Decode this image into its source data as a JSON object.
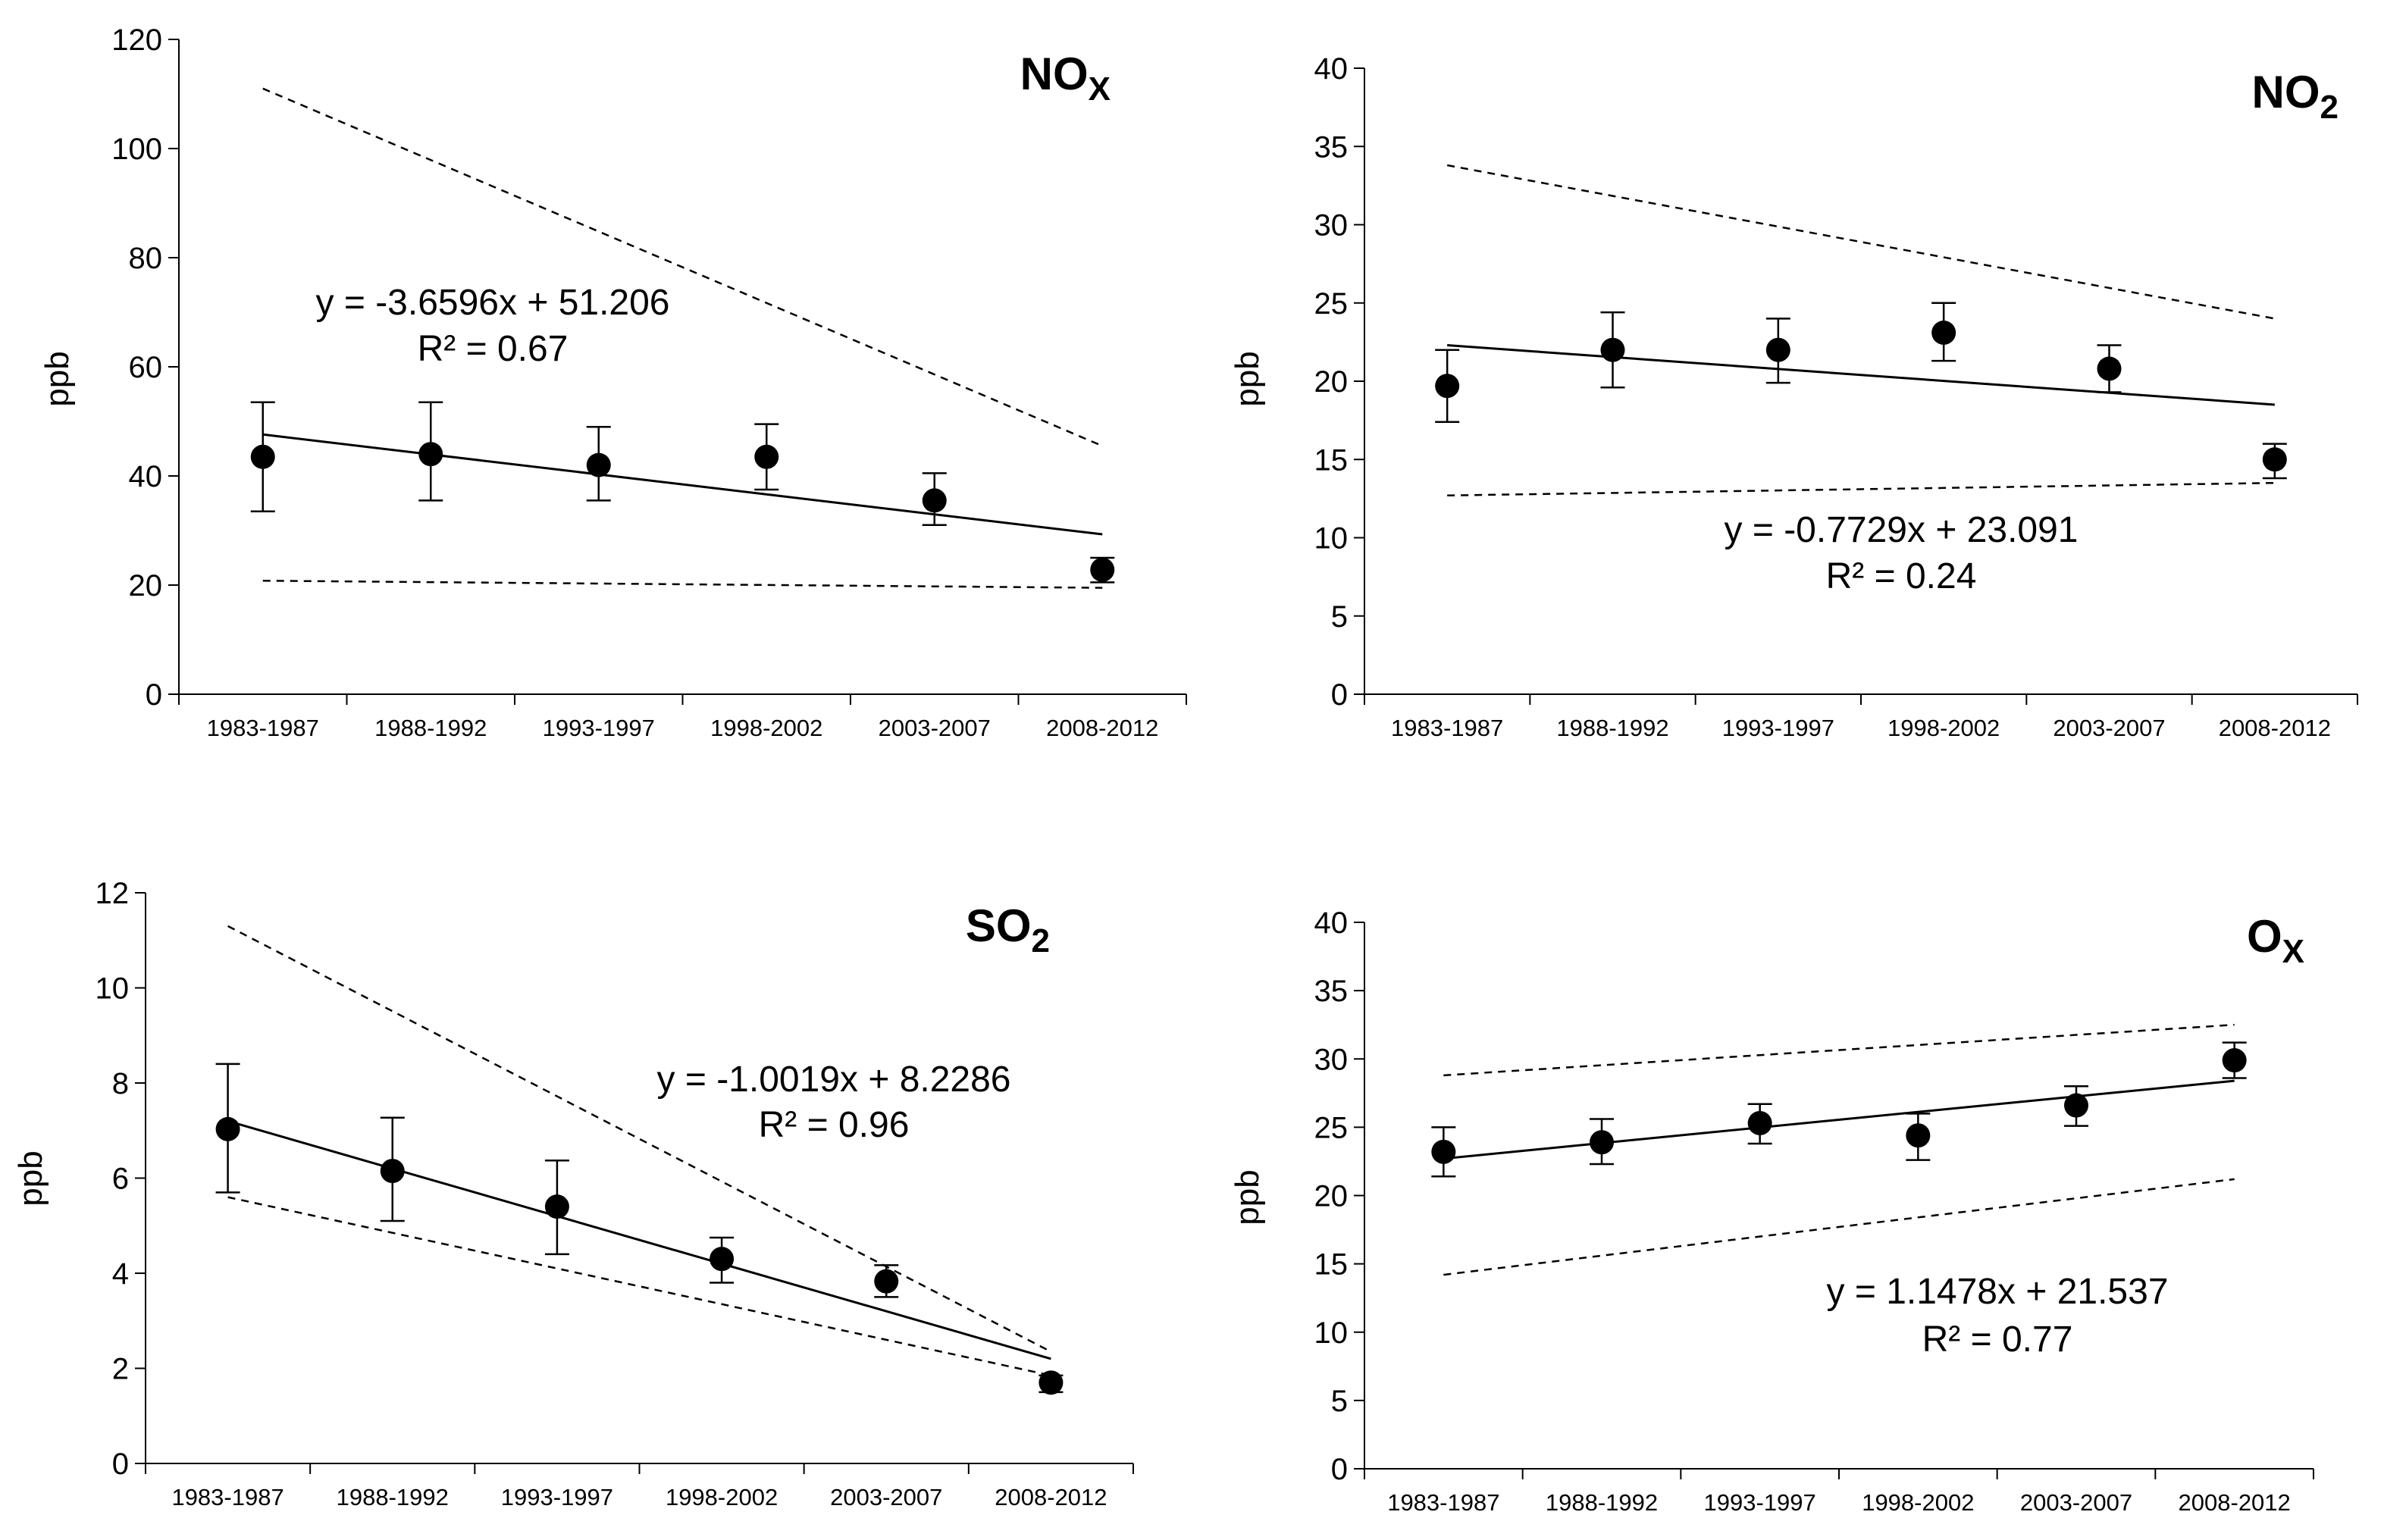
{
  "chart_data": [
    {
      "type": "scatter",
      "panel": "top-left",
      "title": "NO",
      "title_sub": "X",
      "ylabel": "ppb",
      "ylim": [
        0,
        120
      ],
      "yticks": [
        0,
        20,
        40,
        60,
        80,
        100,
        120
      ],
      "categories": [
        "1983-1987",
        "1988-1992",
        "1993-1997",
        "1998-2002",
        "2003-2007",
        "2008-2012"
      ],
      "values": [
        43.5,
        44.0,
        42.0,
        43.5,
        35.5,
        22.8
      ],
      "error_upper": [
        53.5,
        53.5,
        49.0,
        49.5,
        40.5,
        25.0
      ],
      "error_lower": [
        33.5,
        35.5,
        35.5,
        37.5,
        31.0,
        20.5
      ],
      "trendline": {
        "start": 47.6,
        "end": 29.3
      },
      "dashed_upper": {
        "start": 111,
        "end": 45.5
      },
      "dashed_lower": {
        "start": 20.8,
        "end": 19.5
      },
      "equation": "y = -3.6596x + 51.206",
      "r2": "R² = 0.67"
    },
    {
      "type": "scatter",
      "panel": "top-right",
      "title": "NO",
      "title_sub": "2",
      "ylabel": "ppb",
      "ylim": [
        0,
        40
      ],
      "yticks": [
        0,
        5,
        10,
        15,
        20,
        25,
        30,
        35,
        40
      ],
      "categories": [
        "1983-1987",
        "1988-1992",
        "1993-1997",
        "1998-2002",
        "2003-2007",
        "2008-2012"
      ],
      "values": [
        19.7,
        22.0,
        22.0,
        23.1,
        20.8,
        15.0
      ],
      "error_upper": [
        22.0,
        24.4,
        24.0,
        25.0,
        22.3,
        16.0
      ],
      "error_lower": [
        17.4,
        19.6,
        19.9,
        21.3,
        19.3,
        13.8
      ],
      "trendline": {
        "start": 22.3,
        "end": 18.5
      },
      "dashed_upper": {
        "start": 33.8,
        "end": 24.0
      },
      "dashed_lower": {
        "start": 12.7,
        "end": 13.5
      },
      "equation": "y = -0.7729x + 23.091",
      "r2": "R² = 0.24"
    },
    {
      "type": "scatter",
      "panel": "bottom-left",
      "title": "SO",
      "title_sub": "2",
      "ylabel": "ppb",
      "ylim": [
        0,
        12
      ],
      "yticks": [
        0,
        2,
        4,
        6,
        8,
        10,
        12
      ],
      "categories": [
        "1983-1987",
        "1988-1992",
        "1993-1997",
        "1998-2002",
        "2003-2007",
        "2008-2012"
      ],
      "values": [
        7.03,
        6.15,
        5.4,
        4.3,
        3.83,
        1.7
      ],
      "error_upper": [
        8.4,
        7.27,
        6.37,
        4.75,
        4.17,
        1.85
      ],
      "error_lower": [
        5.7,
        5.1,
        4.4,
        3.8,
        3.5,
        1.5
      ],
      "trendline": {
        "start": 7.2,
        "end": 2.2
      },
      "dashed_upper": {
        "start": 11.3,
        "end": 2.35
      },
      "dashed_lower": {
        "start": 5.6,
        "end": 1.85
      },
      "equation": "y = -1.0019x + 8.2286",
      "r2": "R² = 0.96"
    },
    {
      "type": "scatter",
      "panel": "bottom-right",
      "title": "O",
      "title_sub": "X",
      "ylabel": "ppb",
      "ylim": [
        0,
        40
      ],
      "yticks": [
        0,
        5,
        10,
        15,
        20,
        25,
        30,
        35,
        40
      ],
      "categories": [
        "1983-1987",
        "1988-1992",
        "1993-1997",
        "1998-2002",
        "2003-2007",
        "2008-2012"
      ],
      "values": [
        23.2,
        23.9,
        25.3,
        24.4,
        26.6,
        29.9
      ],
      "error_upper": [
        25.0,
        25.6,
        26.7,
        26.0,
        28.0,
        31.2
      ],
      "error_lower": [
        21.4,
        22.3,
        23.8,
        22.6,
        25.1,
        28.6
      ],
      "trendline": {
        "start": 22.7,
        "end": 28.4
      },
      "dashed_upper": {
        "start": 28.8,
        "end": 32.5
      },
      "dashed_lower": {
        "start": 14.2,
        "end": 21.2
      },
      "equation": "y = 1.1478x + 21.537",
      "r2": "R² = 0.77"
    }
  ]
}
